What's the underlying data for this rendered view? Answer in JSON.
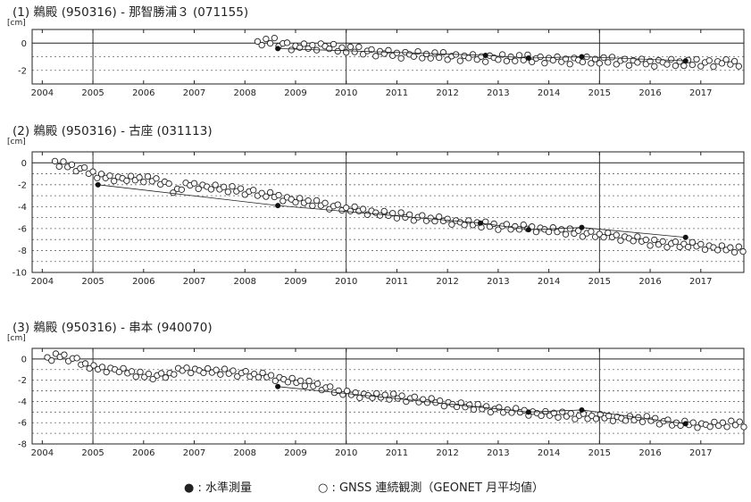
{
  "legend": {
    "leveling": "● : 水準測量",
    "gnss": "○ : GNSS 連続観測（GEONET 月平均値）"
  },
  "colors": {
    "line": "#222222",
    "grid": "#666666",
    "marker_fill": "#ffffff",
    "dot_fill": "#111111"
  },
  "chart_data": [
    {
      "type": "scatter",
      "title": "(1)  鵜殿 (950316) - 那智勝浦３ (071155)",
      "unit": "[cm]",
      "x_ticks": [
        "2004",
        "2005",
        "2006",
        "2007",
        "2008",
        "2009",
        "2010",
        "2011",
        "2012",
        "2013",
        "2014",
        "2015",
        "2016",
        "2017"
      ],
      "xlim": [
        2003.8,
        2017.85
      ],
      "ylim": [
        -3,
        1
      ],
      "y_ticks": [
        0,
        -2
      ],
      "grid": "dotted",
      "gnss_series": {
        "start": 2008.25,
        "end": 2017.75,
        "anchors": [
          [
            2008.25,
            0.0
          ],
          [
            2008.55,
            0.1
          ],
          [
            2009.0,
            -0.3
          ],
          [
            2009.5,
            -0.2
          ],
          [
            2010.0,
            -0.5
          ],
          [
            2011.0,
            -0.8
          ],
          [
            2012.0,
            -1.0
          ],
          [
            2013.0,
            -1.1
          ],
          [
            2014.0,
            -1.2
          ],
          [
            2015.0,
            -1.3
          ],
          [
            2016.0,
            -1.4
          ],
          [
            2016.8,
            -1.5
          ],
          [
            2017.75,
            -1.4
          ]
        ],
        "wiggles": [
          0.12,
          -0.18,
          0.25,
          -0.1,
          0.3,
          -0.22,
          0.05,
          0.18,
          -0.28,
          0.1,
          -0.05,
          0.22,
          -0.15,
          0.08,
          -0.3,
          0.16,
          0.02,
          -0.12,
          0.27,
          -0.2
        ]
      },
      "leveling": {
        "x": [
          2008.65,
          2012.75,
          2013.6,
          2014.65,
          2016.7
        ],
        "y": [
          -0.4,
          -0.9,
          -1.1,
          -1.0,
          -1.3
        ]
      }
    },
    {
      "type": "scatter",
      "title": "(2)  鵜殿 (950316) - 古座 (031113)",
      "unit": "[cm]",
      "x_ticks": [
        "2004",
        "2005",
        "2006",
        "2007",
        "2008",
        "2009",
        "2010",
        "2011",
        "2012",
        "2013",
        "2014",
        "2015",
        "2016",
        "2017"
      ],
      "xlim": [
        2003.8,
        2017.85
      ],
      "ylim": [
        -10,
        1
      ],
      "y_ticks": [
        0,
        -2,
        -4,
        -6,
        -8,
        -10
      ],
      "grid": "dotted",
      "gnss_series": {
        "start": 2004.25,
        "end": 2017.85,
        "anchors": [
          [
            2004.25,
            0.0
          ],
          [
            2004.7,
            -0.5
          ],
          [
            2005.0,
            -0.9
          ],
          [
            2005.1,
            -1.3
          ],
          [
            2005.5,
            -1.4
          ],
          [
            2006.0,
            -1.5
          ],
          [
            2006.4,
            -1.7
          ],
          [
            2006.6,
            -2.6
          ],
          [
            2006.9,
            -2.0
          ],
          [
            2007.5,
            -2.3
          ],
          [
            2008.0,
            -2.6
          ],
          [
            2008.5,
            -3.0
          ],
          [
            2009.0,
            -3.4
          ],
          [
            2009.5,
            -3.8
          ],
          [
            2010.0,
            -4.2
          ],
          [
            2011.0,
            -4.8
          ],
          [
            2012.0,
            -5.3
          ],
          [
            2013.0,
            -5.8
          ],
          [
            2014.0,
            -6.1
          ],
          [
            2015.0,
            -6.6
          ],
          [
            2015.8,
            -7.0
          ],
          [
            2016.0,
            -7.3
          ],
          [
            2017.0,
            -7.6
          ],
          [
            2017.85,
            -8.0
          ]
        ],
        "wiggles": [
          0.15,
          -0.25,
          0.3,
          -0.1,
          0.2,
          -0.3,
          0.05,
          0.25,
          -0.2,
          0.1,
          -0.15,
          0.3,
          -0.05,
          0.18,
          -0.28,
          0.12,
          0.0,
          -0.2,
          0.24,
          -0.12
        ]
      },
      "leveling": {
        "x": [
          2005.1,
          2008.65,
          2012.65,
          2013.6,
          2014.65,
          2016.7
        ],
        "y": [
          -2.0,
          -3.9,
          -5.5,
          -6.1,
          -5.9,
          -6.8
        ]
      }
    },
    {
      "type": "scatter",
      "title": "(3)  鵜殿 (950316) - 串本 (940070)",
      "unit": "[cm]",
      "x_ticks": [
        "2004",
        "2005",
        "2006",
        "2007",
        "2008",
        "2009",
        "2010",
        "2011",
        "2012",
        "2013",
        "2014",
        "2015",
        "2016",
        "2017"
      ],
      "xlim": [
        2003.8,
        2017.85
      ],
      "ylim": [
        -8,
        1
      ],
      "y_ticks": [
        0,
        -2,
        -4,
        -6,
        -8
      ],
      "grid": "dotted",
      "gnss_series": {
        "start": 2004.1,
        "end": 2017.85,
        "anchors": [
          [
            2004.1,
            0.0
          ],
          [
            2004.35,
            0.3
          ],
          [
            2004.6,
            0.0
          ],
          [
            2004.8,
            -0.4
          ],
          [
            2005.0,
            -0.9
          ],
          [
            2005.5,
            -1.0
          ],
          [
            2006.0,
            -1.6
          ],
          [
            2006.4,
            -1.6
          ],
          [
            2006.8,
            -1.0
          ],
          [
            2007.5,
            -1.2
          ],
          [
            2008.0,
            -1.4
          ],
          [
            2008.5,
            -1.7
          ],
          [
            2009.0,
            -2.1
          ],
          [
            2009.5,
            -2.6
          ],
          [
            2010.0,
            -3.3
          ],
          [
            2011.0,
            -3.6
          ],
          [
            2012.0,
            -4.2
          ],
          [
            2013.0,
            -4.8
          ],
          [
            2014.0,
            -5.2
          ],
          [
            2015.0,
            -5.5
          ],
          [
            2016.0,
            -5.7
          ],
          [
            2016.5,
            -6.1
          ],
          [
            2017.0,
            -6.2
          ],
          [
            2017.85,
            -6.1
          ]
        ],
        "wiggles": [
          0.15,
          -0.25,
          0.3,
          -0.1,
          0.2,
          -0.3,
          0.05,
          0.25,
          -0.2,
          0.1,
          -0.15,
          0.3,
          -0.05,
          0.18,
          -0.28,
          0.12,
          0.0,
          -0.2,
          0.24,
          -0.12
        ]
      },
      "leveling": {
        "x": [
          2008.65,
          2013.6,
          2014.65,
          2016.7
        ],
        "y": [
          -2.6,
          -5.0,
          -4.8,
          -6.1
        ]
      }
    }
  ]
}
